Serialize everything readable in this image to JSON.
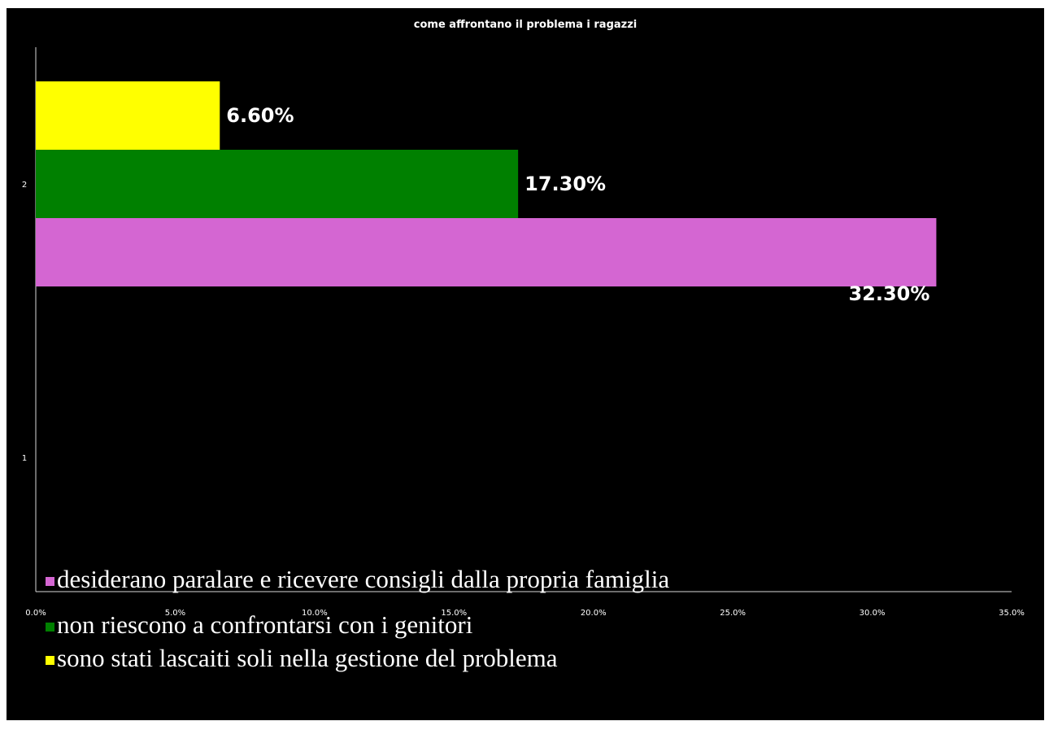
{
  "chart_data": {
    "type": "bar",
    "orientation": "horizontal",
    "title": "come affrontano il problema i ragazzi",
    "xlabel": "",
    "ylabel": "",
    "categories": [
      "1",
      "2"
    ],
    "series": [
      {
        "name": "desiderano paralare e ricevere consigli dalla propria famiglia",
        "color": "#d466d2",
        "values": [
          null,
          32.3
        ],
        "label": "32.30%"
      },
      {
        "name": "non riescono a confrontarsi con i genitori",
        "color": "#008000",
        "values": [
          null,
          17.3
        ],
        "label": "17.30%"
      },
      {
        "name": "sono stati lascaiti soli nella gestione del problema",
        "color": "#ffff00",
        "values": [
          null,
          6.6
        ],
        "label": "6.60%"
      }
    ],
    "x_ticks": [
      "0.0%",
      "5.0%",
      "10.0%",
      "15.0%",
      "20.0%",
      "25.0%",
      "30.0%",
      "35.0%"
    ],
    "xlim": [
      0,
      35
    ],
    "grid": false,
    "legend_position": "bottom-left",
    "background": "#000000",
    "text_color": "#ffffff"
  }
}
